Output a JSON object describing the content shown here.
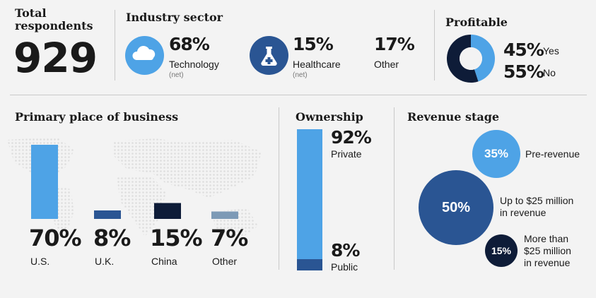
{
  "colors": {
    "light_blue": "#4ea3e6",
    "mid_blue": "#2a5593",
    "dark_navy": "#0e1c38",
    "steel": "#7d9ab6",
    "line": "#c9c9c9"
  },
  "total": {
    "label_line1": "Total",
    "label_line2": "respondents",
    "value": "929"
  },
  "industry": {
    "title": "Industry sector",
    "items": [
      {
        "pct": "68%",
        "name": "Technology",
        "note": "(net)",
        "icon": "cloud-icon"
      },
      {
        "pct": "15%",
        "name": "Healthcare",
        "note": "(net)",
        "icon": "flask-icon"
      },
      {
        "pct": "17%",
        "name": "Other",
        "note": "",
        "icon": ""
      }
    ]
  },
  "profitable": {
    "title": "Profitable",
    "yes_pct": "45%",
    "yes_label": "Yes",
    "no_pct": "55%",
    "no_label": "No"
  },
  "chart_data": [
    {
      "type": "bar",
      "title": "Primary place of business",
      "categories": [
        "U.S.",
        "U.K.",
        "China",
        "Other"
      ],
      "values": [
        70,
        8,
        15,
        7
      ],
      "value_labels": [
        "70%",
        "8%",
        "15%",
        "7%"
      ],
      "colors": [
        "#4ea3e6",
        "#2a5593",
        "#0e1c38",
        "#7d9ab6"
      ]
    },
    {
      "type": "bar",
      "title": "Ownership",
      "categories": [
        "Private",
        "Public"
      ],
      "values": [
        92,
        8
      ],
      "value_labels": [
        "92%",
        "8%"
      ],
      "colors": [
        "#4ea3e6",
        "#2a5593"
      ]
    },
    {
      "type": "pie",
      "title": "Profitable",
      "categories": [
        "Yes",
        "No"
      ],
      "values": [
        45,
        55
      ],
      "colors": [
        "#4ea3e6",
        "#0e1c38"
      ]
    },
    {
      "type": "scatter",
      "title": "Revenue stage",
      "categories": [
        "Pre-revenue",
        "Up to $25 million in revenue",
        "More than $25 million in revenue"
      ],
      "values": [
        35,
        50,
        15
      ],
      "value_labels": [
        "35%",
        "50%",
        "15%"
      ],
      "colors": [
        "#4ea3e6",
        "#2a5593",
        "#0e1c38"
      ]
    }
  ],
  "revenue_labels": {
    "pre": "Pre-revenue",
    "mid_line1": "Up to $25 million",
    "mid_line2": "in revenue",
    "top_line1": "More than",
    "top_line2": "$25 million",
    "top_line3": "in revenue"
  }
}
